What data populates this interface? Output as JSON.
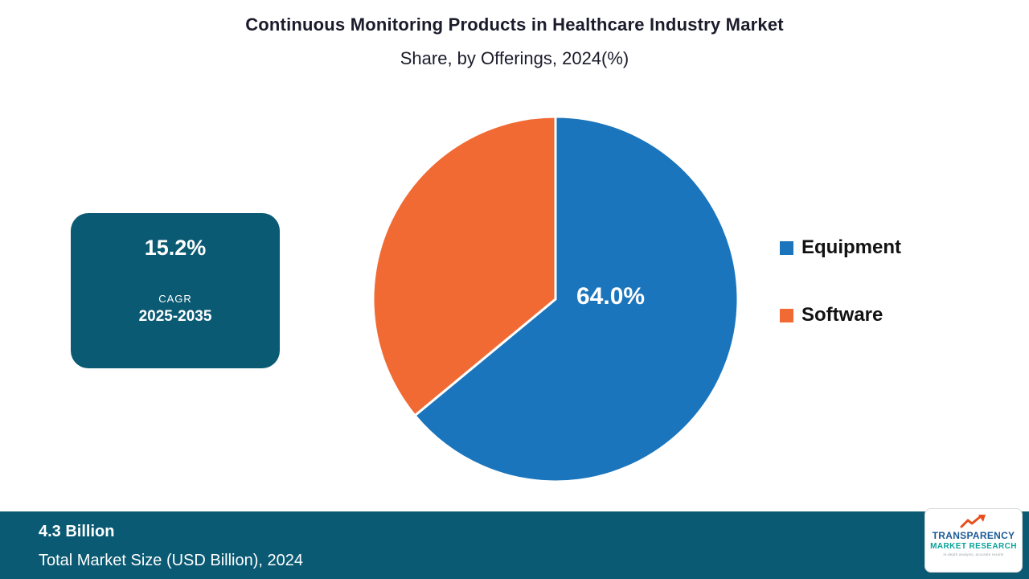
{
  "title": {
    "line1": "Continuous Monitoring Products in Healthcare Industry Market",
    "line2": "Share, by Offerings, 2024(%)"
  },
  "cagr_box": {
    "value": "15.2%",
    "label": "CAGR",
    "period": "2025-2035"
  },
  "chart_data": {
    "type": "pie",
    "title": "Continuous Monitoring Products in Healthcare Industry Market Share, by Offerings, 2024(%)",
    "categories": [
      "Equipment",
      "Software"
    ],
    "values": [
      64.0,
      36.0
    ],
    "unit": "%",
    "colors": [
      "#1b75bc",
      "#f26a33"
    ],
    "center_label": "64.0%",
    "start_angle_deg": 0,
    "direction": "clockwise",
    "legend_position": "right"
  },
  "legend": {
    "items": [
      {
        "label": "Equipment",
        "color": "#1b75bc"
      },
      {
        "label": "Software",
        "color": "#f26a33"
      }
    ]
  },
  "footer": {
    "market_size": "4.3 Billion",
    "caption": "Total Market Size (USD Billion), 2024"
  },
  "logo": {
    "line1": "TRANSPARENCY",
    "line2": "MARKET RESEARCH",
    "tagline": "in-depth analysis, accurate results"
  }
}
